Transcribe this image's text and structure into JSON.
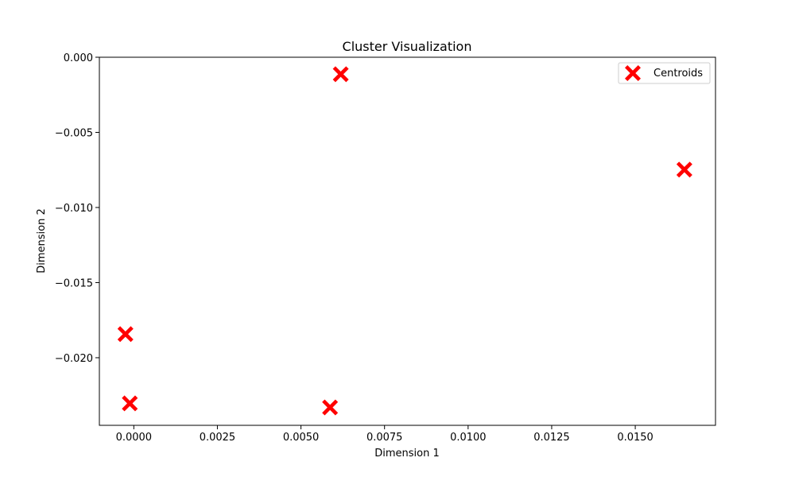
{
  "chart_data": {
    "type": "scatter",
    "title": "Cluster Visualization",
    "xlabel": "Dimension 1",
    "ylabel": "Dimension 2",
    "xlim": [
      -0.00103,
      0.0174
    ],
    "ylim": [
      -0.0245,
      0.0
    ],
    "x_ticks": [
      {
        "value": 0.0,
        "label": "0.0000"
      },
      {
        "value": 0.0025,
        "label": "0.0025"
      },
      {
        "value": 0.005,
        "label": "0.0050"
      },
      {
        "value": 0.0075,
        "label": "0.0075"
      },
      {
        "value": 0.01,
        "label": "0.0100"
      },
      {
        "value": 0.0125,
        "label": "0.0125"
      },
      {
        "value": 0.015,
        "label": "0.0150"
      }
    ],
    "y_ticks": [
      {
        "value": 0.0,
        "label": "0.000"
      },
      {
        "value": -0.005,
        "label": "−0.005"
      },
      {
        "value": -0.01,
        "label": "−0.010"
      },
      {
        "value": -0.015,
        "label": "−0.015"
      },
      {
        "value": -0.02,
        "label": "−0.020"
      }
    ],
    "grid": false,
    "legend_position": "top-right",
    "series": [
      {
        "name": "Centroids",
        "marker": "X",
        "color": "#ff0000",
        "points": [
          {
            "x": 0.00619,
            "y": -0.00113
          },
          {
            "x": 0.01647,
            "y": -0.00748
          },
          {
            "x": -0.00025,
            "y": -0.01843
          },
          {
            "x": -0.00012,
            "y": -0.02304
          },
          {
            "x": 0.00587,
            "y": -0.02331
          }
        ]
      }
    ]
  }
}
